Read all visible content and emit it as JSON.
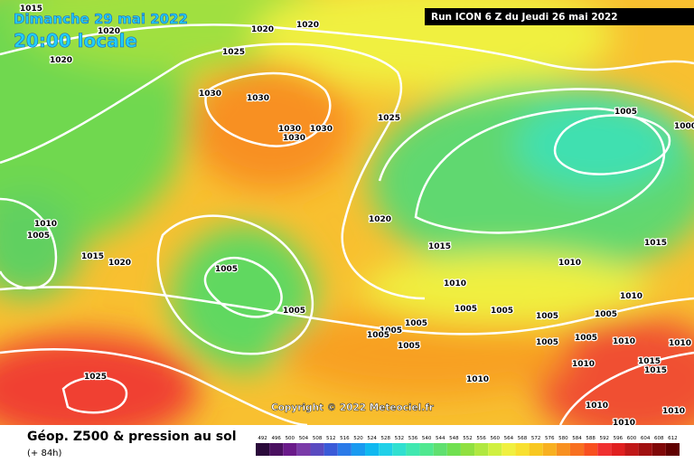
{
  "map": {
    "date": "Dimanche 29 mai 2022",
    "time": "20:00 locale",
    "run": "Run ICON 6 Z du Jeudi 26 mai 2022",
    "copyright": "Copyright © 2022 Meteociel.fr",
    "isobar_labels": [
      "1015",
      "1020",
      "1020",
      "1020",
      "1020",
      "1025",
      "1030",
      "1030",
      "1030",
      "1030",
      "1030",
      "1025",
      "1005",
      "1000",
      "1010",
      "1005",
      "1015",
      "1020",
      "1005",
      "1020",
      "1015",
      "1010",
      "1015",
      "1010",
      "1010",
      "1005",
      "1005",
      "1005",
      "1005",
      "1005",
      "1005",
      "1005",
      "1005",
      "1005",
      "1005",
      "1005",
      "1010",
      "1010",
      "1010",
      "1015",
      "1015",
      "1025",
      "1010",
      "1010",
      "1010",
      "1010"
    ]
  },
  "footer": {
    "title": "Géop. Z500 & pression au sol",
    "subtitle": "(+ 84h)"
  },
  "legend": {
    "values": [
      492,
      496,
      500,
      504,
      508,
      512,
      516,
      520,
      524,
      528,
      532,
      536,
      540,
      544,
      548,
      552,
      556,
      560,
      564,
      568,
      572,
      576,
      580,
      584,
      588,
      592,
      596,
      600,
      604,
      608,
      612
    ],
    "colors": [
      "#2a0a3a",
      "#4a1060",
      "#6a1a8a",
      "#7a3aa8",
      "#5a4ac0",
      "#3a5ad8",
      "#2a7ae8",
      "#1a9af0",
      "#10b8f0",
      "#20d0e8",
      "#30e0d0",
      "#40e8b0",
      "#50e890",
      "#60e070",
      "#70e050",
      "#90e040",
      "#b0e840",
      "#d0f040",
      "#f0f040",
      "#f8e030",
      "#f8c820",
      "#f8b020",
      "#f89020",
      "#f87020",
      "#f85020",
      "#f03030",
      "#e02020",
      "#c01818",
      "#a01010",
      "#800808",
      "#600000"
    ]
  }
}
